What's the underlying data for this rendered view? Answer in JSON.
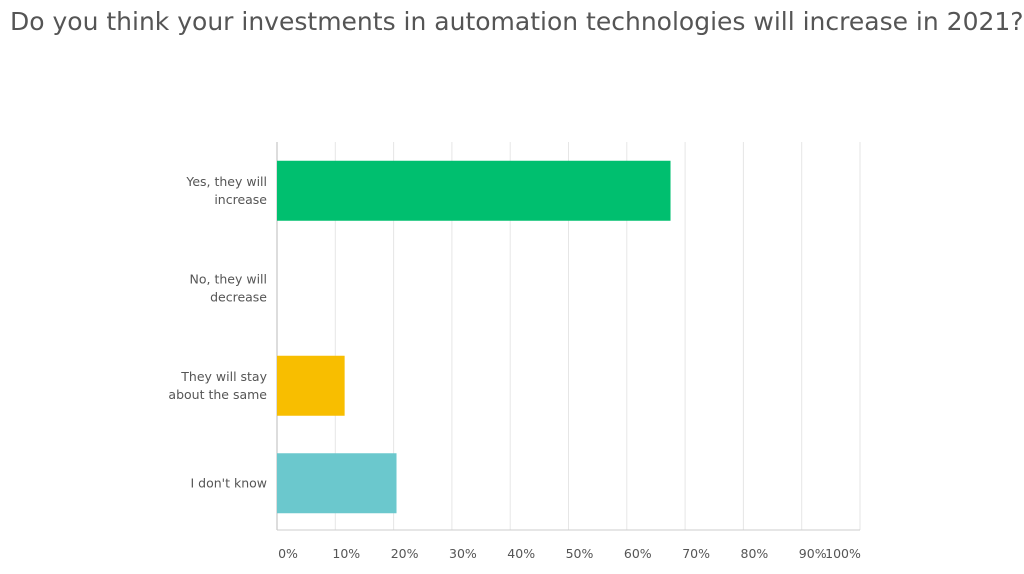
{
  "chart_data": {
    "type": "bar",
    "orientation": "horizontal",
    "title": "Do you think your investments in automation technologies will increase in 2021?",
    "categories": [
      [
        "Yes, they will",
        "increase"
      ],
      [
        "No, they will",
        "decrease"
      ],
      [
        "They will stay",
        "about the same"
      ],
      [
        "I don't know"
      ]
    ],
    "values": [
      67.5,
      0,
      11.6,
      20.5
    ],
    "colors": [
      "#00bf6f",
      "#ffffff",
      "#f8be00",
      "#6bc8cd"
    ],
    "xlim": [
      0,
      100
    ],
    "xticks": [
      "0%",
      "10%",
      "20%",
      "30%",
      "40%",
      "50%",
      "60%",
      "70%",
      "80%",
      "90%",
      "100%"
    ],
    "grid": true,
    "xlabel": "",
    "ylabel": ""
  }
}
